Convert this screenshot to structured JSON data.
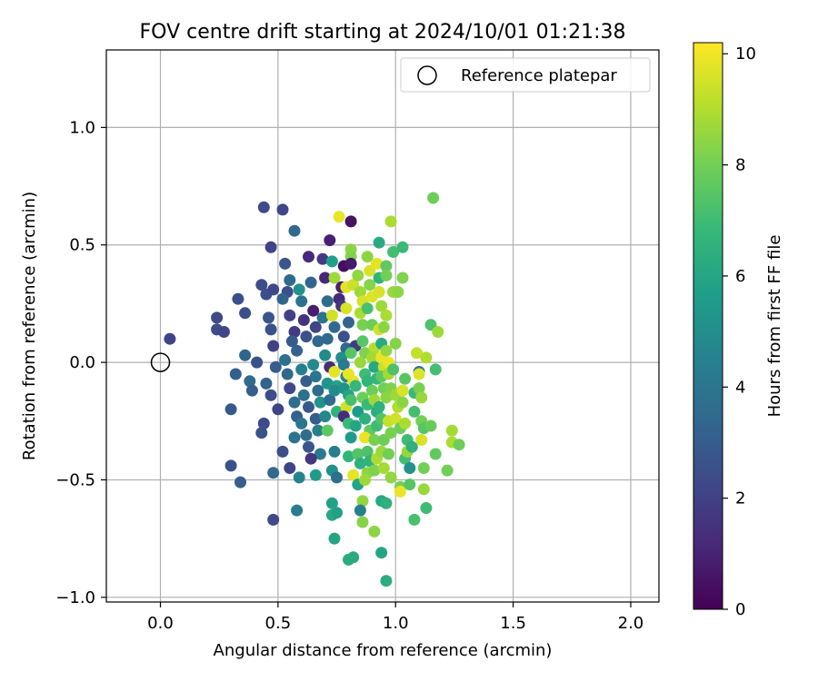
{
  "chart_data": {
    "type": "scatter",
    "title": "FOV centre drift starting at 2024/10/01 01:21:38",
    "xlabel": "Angular distance from reference (arcmin)",
    "ylabel": "Rotation from reference (arcmin)",
    "xlim": [
      -0.23,
      2.12
    ],
    "ylim": [
      -1.02,
      1.33
    ],
    "x_ticks": [
      0.0,
      0.5,
      1.0,
      1.5,
      2.0
    ],
    "x_tick_labels": [
      "0.0",
      "0.5",
      "1.0",
      "1.5",
      "2.0"
    ],
    "y_ticks": [
      -1.0,
      -0.5,
      0.0,
      0.5,
      1.0
    ],
    "y_tick_labels": [
      "−1.0",
      "−0.5",
      "0.0",
      "0.5",
      "1.0"
    ],
    "grid": true,
    "legend": {
      "placement": "top-right",
      "entries": [
        "Reference platepar"
      ]
    },
    "reference_point": {
      "x": 0.0,
      "y": 0.0,
      "name": "Reference platepar"
    },
    "colorbar": {
      "label": "Hours from first FF file",
      "range": [
        0,
        10.2
      ],
      "ticks": [
        0,
        2,
        4,
        6,
        8,
        10
      ],
      "tick_labels": [
        "0",
        "2",
        "4",
        "6",
        "8",
        "10"
      ],
      "colormap": "viridis",
      "colors": [
        "#440154",
        "#482878",
        "#3e4989",
        "#31688e",
        "#26828e",
        "#1f9e89",
        "#35b779",
        "#6ece58",
        "#b5de2b",
        "#fde725"
      ]
    },
    "points": [
      [
        0.04,
        0.1,
        2.1
      ],
      [
        0.24,
        0.19,
        2.3
      ],
      [
        0.24,
        0.14,
        2.4
      ],
      [
        0.27,
        0.13,
        2.2
      ],
      [
        0.3,
        -0.2,
        2.8
      ],
      [
        0.3,
        -0.44,
        2.6
      ],
      [
        0.34,
        -0.51,
        3.0
      ],
      [
        0.33,
        0.27,
        2.5
      ],
      [
        0.36,
        0.21,
        2.4
      ],
      [
        0.32,
        -0.05,
        3.1
      ],
      [
        0.36,
        0.03,
        3.3
      ],
      [
        0.38,
        -0.08,
        3.5
      ],
      [
        0.39,
        -0.12,
        3.0
      ],
      [
        0.41,
        0.0,
        2.6
      ],
      [
        0.43,
        0.33,
        2.4
      ],
      [
        0.44,
        0.66,
        2.3
      ],
      [
        0.45,
        0.29,
        2.5
      ],
      [
        0.47,
        0.49,
        2.1
      ],
      [
        0.48,
        0.31,
        2.2
      ],
      [
        0.46,
        0.19,
        2.7
      ],
      [
        0.47,
        0.14,
        2.6
      ],
      [
        0.48,
        0.07,
        2.0
      ],
      [
        0.44,
        -0.26,
        2.3
      ],
      [
        0.43,
        -0.3,
        2.6
      ],
      [
        0.45,
        -0.09,
        3.2
      ],
      [
        0.47,
        -0.14,
        2.4
      ],
      [
        0.49,
        -0.02,
        3.0
      ],
      [
        0.5,
        -0.2,
        2.1
      ],
      [
        0.48,
        -0.67,
        2.3
      ],
      [
        0.48,
        -0.47,
        3.4
      ],
      [
        0.52,
        0.65,
        2.2
      ],
      [
        0.53,
        0.42,
        2.7
      ],
      [
        0.54,
        0.3,
        2.5
      ],
      [
        0.52,
        0.27,
        3.3
      ],
      [
        0.55,
        0.35,
        3.5
      ],
      [
        0.55,
        0.2,
        2.0
      ],
      [
        0.57,
        0.13,
        1.8
      ],
      [
        0.56,
        0.09,
        2.9
      ],
      [
        0.58,
        0.05,
        3.2
      ],
      [
        0.53,
        0.01,
        3.7
      ],
      [
        0.54,
        -0.05,
        3.4
      ],
      [
        0.55,
        -0.11,
        2.2
      ],
      [
        0.57,
        -0.17,
        3.6
      ],
      [
        0.58,
        -0.23,
        3.1
      ],
      [
        0.57,
        -0.32,
        3.9
      ],
      [
        0.52,
        -0.38,
        2.5
      ],
      [
        0.55,
        -0.45,
        2.1
      ],
      [
        0.57,
        0.56,
        3.4
      ],
      [
        0.59,
        0.31,
        5.1
      ],
      [
        0.6,
        0.26,
        3.8
      ],
      [
        0.61,
        0.18,
        1.5
      ],
      [
        0.62,
        0.11,
        2.6
      ],
      [
        0.6,
        -0.03,
        4.5
      ],
      [
        0.62,
        -0.08,
        3.0
      ],
      [
        0.61,
        -0.14,
        3.8
      ],
      [
        0.63,
        -0.19,
        2.9
      ],
      [
        0.6,
        -0.26,
        4.1
      ],
      [
        0.62,
        -0.31,
        3.6
      ],
      [
        0.63,
        -0.36,
        2.7
      ],
      [
        0.59,
        -0.49,
        4.6
      ],
      [
        0.58,
        -0.63,
        4.3
      ],
      [
        0.63,
        0.45,
        1.2
      ],
      [
        0.64,
        0.34,
        3.3
      ],
      [
        0.65,
        0.22,
        0.8
      ],
      [
        0.66,
        0.15,
        2.2
      ],
      [
        0.67,
        0.09,
        3.4
      ],
      [
        0.65,
        -0.01,
        4.8
      ],
      [
        0.66,
        -0.06,
        4.0
      ],
      [
        0.67,
        -0.12,
        3.5
      ],
      [
        0.68,
        -0.17,
        5.2
      ],
      [
        0.66,
        -0.24,
        3.0
      ],
      [
        0.67,
        -0.29,
        4.4
      ],
      [
        0.68,
        -0.39,
        4.2
      ],
      [
        0.66,
        -0.48,
        5.6
      ],
      [
        0.64,
        -0.41,
        1.6
      ],
      [
        0.69,
        0.44,
        1.8
      ],
      [
        0.7,
        0.36,
        1.1
      ],
      [
        0.71,
        0.26,
        3.6
      ],
      [
        0.69,
        0.19,
        3.9
      ],
      [
        0.71,
        0.1,
        3.4
      ],
      [
        0.7,
        0.03,
        4.9
      ],
      [
        0.72,
        -0.02,
        1.4
      ],
      [
        0.71,
        -0.09,
        5.3
      ],
      [
        0.72,
        -0.16,
        3.6
      ],
      [
        0.7,
        -0.23,
        4.7
      ],
      [
        0.71,
        -0.29,
        7.6
      ],
      [
        0.73,
        -0.46,
        5.1
      ],
      [
        0.73,
        -0.6,
        5.8
      ],
      [
        0.73,
        -0.65,
        6.2
      ],
      [
        0.74,
        -0.75,
        6.0
      ],
      [
        0.73,
        0.43,
        5.7
      ],
      [
        0.72,
        0.52,
        0.9
      ],
      [
        0.74,
        0.36,
        8.7
      ],
      [
        0.73,
        0.2,
        9.5
      ],
      [
        0.74,
        0.15,
        3.5
      ],
      [
        0.74,
        -0.04,
        9.8
      ],
      [
        0.75,
        -0.1,
        5.9
      ],
      [
        0.74,
        -0.12,
        4.9
      ],
      [
        0.75,
        -0.21,
        6.6
      ],
      [
        0.74,
        -0.38,
        4.4
      ],
      [
        0.75,
        -0.49,
        3.7
      ],
      [
        0.75,
        -0.64,
        5.8
      ],
      [
        0.76,
        0.62,
        9.9
      ],
      [
        0.76,
        0.27,
        1.2
      ],
      [
        0.77,
        0.24,
        1.6
      ],
      [
        0.77,
        0.32,
        1.0
      ],
      [
        0.78,
        0.41,
        0.4
      ],
      [
        0.79,
        0.32,
        9.8
      ],
      [
        0.79,
        0.23,
        9.6
      ],
      [
        0.78,
        0.11,
        2.6
      ],
      [
        0.79,
        0.06,
        3.5
      ],
      [
        0.77,
        0.02,
        5.0
      ],
      [
        0.78,
        -0.01,
        4.2
      ],
      [
        0.79,
        -0.06,
        4.6
      ],
      [
        0.78,
        -0.11,
        5.2
      ],
      [
        0.8,
        -0.14,
        5.9
      ],
      [
        0.79,
        -0.19,
        9.5
      ],
      [
        0.78,
        -0.23,
        1.3
      ],
      [
        0.8,
        -0.26,
        6.9
      ],
      [
        0.81,
        -0.32,
        5.6
      ],
      [
        0.8,
        -0.4,
        6.7
      ],
      [
        0.82,
        -0.48,
        9.8
      ],
      [
        0.8,
        -0.84,
        6.3
      ],
      [
        0.82,
        -0.83,
        6.2
      ],
      [
        0.81,
        0.6,
        0.5
      ],
      [
        0.81,
        0.48,
        8.4
      ],
      [
        0.81,
        0.45,
        8.2
      ],
      [
        0.81,
        0.42,
        0.7
      ],
      [
        0.82,
        0.33,
        9.4
      ],
      [
        0.8,
        0.17,
        3.2
      ],
      [
        0.83,
        0.07,
        1.8
      ],
      [
        0.81,
        0.04,
        7.5
      ],
      [
        0.8,
        -0.05,
        9.9
      ],
      [
        0.82,
        -0.08,
        9.8
      ],
      [
        0.83,
        -0.1,
        6.8
      ],
      [
        0.81,
        -0.16,
        7.2
      ],
      [
        0.84,
        -0.21,
        5.6
      ],
      [
        0.83,
        -0.27,
        6.0
      ],
      [
        0.84,
        -0.39,
        7.4
      ],
      [
        0.85,
        -0.43,
        6.5
      ],
      [
        0.84,
        -0.52,
        5.9
      ],
      [
        0.86,
        -0.59,
        8.5
      ],
      [
        0.85,
        -0.63,
        4.5
      ],
      [
        0.86,
        -0.68,
        8.3
      ],
      [
        0.84,
        0.37,
        8.5
      ],
      [
        0.85,
        0.3,
        8.7
      ],
      [
        0.86,
        0.26,
        9.6
      ],
      [
        0.85,
        0.21,
        8.9
      ],
      [
        0.86,
        0.16,
        8.1
      ],
      [
        0.86,
        0.09,
        7.5
      ],
      [
        0.87,
        0.04,
        8.2
      ],
      [
        0.85,
        0.0,
        8.6
      ],
      [
        0.87,
        -0.05,
        7.0
      ],
      [
        0.88,
        -0.08,
        6.6
      ],
      [
        0.86,
        -0.15,
        7.9
      ],
      [
        0.88,
        -0.18,
        6.9
      ],
      [
        0.87,
        -0.24,
        6.5
      ],
      [
        0.89,
        -0.29,
        7.7
      ],
      [
        0.87,
        -0.32,
        9.9
      ],
      [
        0.88,
        -0.38,
        7.3
      ],
      [
        0.89,
        -0.42,
        6.6
      ],
      [
        0.88,
        -0.47,
        8.4
      ],
      [
        0.87,
        -0.5,
        8.7
      ],
      [
        0.88,
        0.45,
        8.4
      ],
      [
        0.89,
        0.39,
        9.6
      ],
      [
        0.89,
        0.33,
        8.3
      ],
      [
        0.9,
        0.28,
        9.7
      ],
      [
        0.88,
        0.23,
        7.2
      ],
      [
        0.9,
        0.16,
        7.9
      ],
      [
        0.91,
        0.06,
        9.0
      ],
      [
        0.9,
        0.02,
        8.8
      ],
      [
        0.91,
        -0.02,
        6.1
      ],
      [
        0.92,
        -0.07,
        6.7
      ],
      [
        0.9,
        -0.12,
        7.9
      ],
      [
        0.91,
        -0.16,
        8.7
      ],
      [
        0.92,
        -0.21,
        6.3
      ],
      [
        0.92,
        -0.27,
        7.0
      ],
      [
        0.91,
        -0.33,
        8.1
      ],
      [
        0.92,
        -0.41,
        8.9
      ],
      [
        0.91,
        -0.46,
        8.2
      ],
      [
        0.91,
        -0.72,
        8.4
      ],
      [
        0.92,
        0.42,
        9.8
      ],
      [
        0.93,
        0.51,
        6.2
      ],
      [
        0.93,
        0.36,
        6.6
      ],
      [
        0.93,
        0.3,
        9.6
      ],
      [
        0.94,
        0.24,
        8.7
      ],
      [
        0.93,
        0.14,
        9.5
      ],
      [
        0.94,
        0.08,
        6.2
      ],
      [
        0.94,
        0.02,
        9.9
      ],
      [
        0.95,
        -0.02,
        9.4
      ],
      [
        0.94,
        -0.06,
        7.6
      ],
      [
        0.95,
        -0.11,
        8.0
      ],
      [
        0.93,
        -0.19,
        6.5
      ],
      [
        0.94,
        -0.24,
        7.4
      ],
      [
        0.95,
        -0.33,
        7.9
      ],
      [
        0.94,
        -0.38,
        8.6
      ],
      [
        0.95,
        -0.45,
        8.8
      ],
      [
        0.94,
        -0.59,
        6.1
      ],
      [
        0.94,
        -0.81,
        6.0
      ],
      [
        0.96,
        0.41,
        7.7
      ],
      [
        0.96,
        0.37,
        8.0
      ],
      [
        0.96,
        0.2,
        8.9
      ],
      [
        0.95,
        0.15,
        8.4
      ],
      [
        0.96,
        0.05,
        8.5
      ],
      [
        0.97,
        0.0,
        9.9
      ],
      [
        0.97,
        -0.05,
        8.8
      ],
      [
        0.98,
        -0.11,
        8.2
      ],
      [
        0.96,
        -0.15,
        8.4
      ],
      [
        0.97,
        -0.25,
        9.3
      ],
      [
        0.98,
        -0.3,
        8.1
      ],
      [
        0.97,
        -0.39,
        8.0
      ],
      [
        0.98,
        -0.49,
        8.5
      ],
      [
        0.96,
        -0.6,
        6.5
      ],
      [
        0.96,
        -0.93,
        6.3
      ],
      [
        0.98,
        0.6,
        8.9
      ],
      [
        0.99,
        0.47,
        7.1
      ],
      [
        0.99,
        0.3,
        8.6
      ],
      [
        1.0,
        0.08,
        8.3
      ],
      [
        0.99,
        -0.03,
        7.3
      ],
      [
        1.0,
        -0.14,
        8.7
      ],
      [
        1.01,
        -0.19,
        9.0
      ],
      [
        1.0,
        -0.24,
        9.5
      ],
      [
        1.02,
        -0.28,
        7.9
      ],
      [
        1.02,
        -0.53,
        8.1
      ],
      [
        1.02,
        -0.55,
        9.9
      ],
      [
        1.01,
        0.3,
        8.4
      ],
      [
        1.03,
        0.49,
        6.9
      ],
      [
        1.03,
        0.36,
        8.2
      ],
      [
        1.03,
        -0.12,
        9.6
      ],
      [
        1.04,
        -0.07,
        7.5
      ],
      [
        1.03,
        -0.17,
        8.4
      ],
      [
        1.04,
        -0.26,
        8.9
      ],
      [
        1.05,
        -0.33,
        7.0
      ],
      [
        1.04,
        -0.41,
        7.1
      ],
      [
        1.05,
        -0.38,
        8.6
      ],
      [
        1.06,
        -0.45,
        5.2
      ],
      [
        1.06,
        -0.52,
        7.5
      ],
      [
        1.07,
        -0.36,
        6.5
      ],
      [
        1.08,
        -0.21,
        7.1
      ],
      [
        1.08,
        -0.13,
        6.9
      ],
      [
        1.08,
        -0.67,
        7.2
      ],
      [
        1.09,
        0.04,
        9.3
      ],
      [
        1.1,
        -0.04,
        4.1
      ],
      [
        1.1,
        -0.05,
        9.7
      ],
      [
        1.1,
        -0.11,
        8.1
      ],
      [
        1.11,
        -0.15,
        8.6
      ],
      [
        1.11,
        -0.25,
        8.0
      ],
      [
        1.11,
        -0.33,
        9.6
      ],
      [
        1.12,
        -0.28,
        7.5
      ],
      [
        1.12,
        -0.45,
        8.0
      ],
      [
        1.12,
        -0.54,
        8.6
      ],
      [
        1.13,
        -0.62,
        7.0
      ],
      [
        1.13,
        0.02,
        9.0
      ],
      [
        1.15,
        0.16,
        7.3
      ],
      [
        1.15,
        -0.27,
        7.8
      ],
      [
        1.16,
        0.7,
        7.9
      ],
      [
        1.17,
        -0.03,
        7.1
      ],
      [
        1.17,
        -0.39,
        7.7
      ],
      [
        1.18,
        0.13,
        8.7
      ],
      [
        1.22,
        -0.46,
        8.0
      ],
      [
        1.24,
        -0.29,
        8.8
      ],
      [
        1.24,
        -0.34,
        8.9
      ],
      [
        1.27,
        -0.35,
        7.9
      ]
    ]
  }
}
